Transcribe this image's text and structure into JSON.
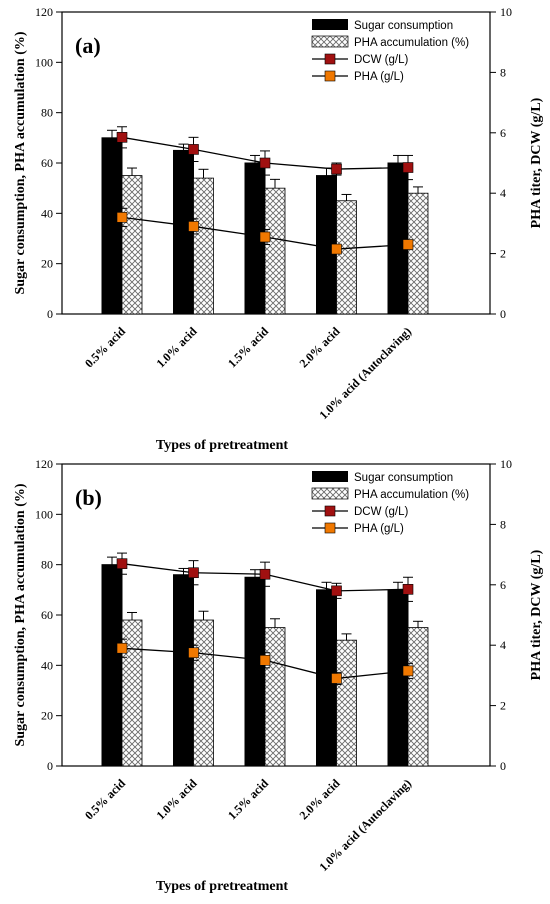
{
  "colors": {
    "sugar_bar": "#000000",
    "pha_accum_bar": "hatched-gray",
    "dcw_marker": "#a01010",
    "pha_marker": "#f07800",
    "line": "#000000"
  },
  "x_axis_title": "Types of pretreatment",
  "legend": {
    "sugar": "Sugar consumption",
    "accum": "PHA accumulation (%)",
    "dcw": "DCW (g/L)",
    "pha": "PHA (g/L)"
  },
  "chart_data": [
    {
      "type": "bar",
      "panel_label": "(a)",
      "categories": [
        "0.5% acid",
        "1.0% acid",
        "1.5% acid",
        "2.0% acid",
        "1.0% acid (Autoclaving)"
      ],
      "ylabel": "Sugar consumption, PHA accumulation (%)",
      "y2label": "PHA titer, DCW (g/L)",
      "xlabel": "Types of pretreatment",
      "ylim": [
        0,
        120
      ],
      "y2lim": [
        0,
        10
      ],
      "yticks": [
        "0",
        "20",
        "40",
        "60",
        "80",
        "100",
        "120"
      ],
      "y2ticks": [
        "0",
        "2",
        "4",
        "6",
        "8",
        "10"
      ],
      "series": [
        {
          "name": "Sugar consumption",
          "axis": "left",
          "kind": "bar",
          "values": [
            70,
            65,
            60,
            55,
            60
          ],
          "errors": [
            3,
            2.5,
            3,
            3,
            3
          ]
        },
        {
          "name": "PHA accumulation (%)",
          "axis": "left",
          "kind": "bar",
          "values": [
            55,
            54,
            50,
            45,
            48
          ],
          "errors": [
            3,
            3.5,
            3.5,
            2.5,
            2.5
          ]
        },
        {
          "name": "DCW (g/L)",
          "axis": "right",
          "kind": "line",
          "values": [
            5.85,
            5.45,
            5.0,
            4.8,
            4.85
          ],
          "errors": [
            0.35,
            0.4,
            0.4,
            0.2,
            0.4
          ]
        },
        {
          "name": "PHA (g/L)",
          "axis": "right",
          "kind": "line",
          "values": [
            3.2,
            2.9,
            2.55,
            2.15,
            2.3
          ],
          "errors": [
            0.3,
            0.25,
            0.25,
            0.15,
            0.15
          ]
        }
      ]
    },
    {
      "type": "bar",
      "panel_label": "(b)",
      "categories": [
        "0.5% acid",
        "1.0% acid",
        "1.5% acid",
        "2.0% acid",
        "1.0% acid (Autoclaving)"
      ],
      "ylabel": "Sugar consumption, PHA accumulation (%)",
      "y2label": "PHA titer, DCW (g/L)",
      "xlabel": "Types of pretreatment",
      "ylim": [
        0,
        120
      ],
      "y2lim": [
        0,
        10
      ],
      "yticks": [
        "0",
        "20",
        "40",
        "60",
        "80",
        "100",
        "120"
      ],
      "y2ticks": [
        "0",
        "2",
        "4",
        "6",
        "8",
        "10"
      ],
      "series": [
        {
          "name": "Sugar consumption",
          "axis": "left",
          "kind": "bar",
          "values": [
            80,
            76,
            75,
            70,
            70
          ],
          "errors": [
            3,
            2.5,
            3,
            3,
            3
          ]
        },
        {
          "name": "PHA accumulation (%)",
          "axis": "left",
          "kind": "bar",
          "values": [
            58,
            58,
            55,
            50,
            55
          ],
          "errors": [
            3,
            3.5,
            3.5,
            2.5,
            2.5
          ]
        },
        {
          "name": "DCW (g/L)",
          "axis": "right",
          "kind": "line",
          "values": [
            6.7,
            6.4,
            6.35,
            5.8,
            5.85
          ],
          "errors": [
            0.35,
            0.4,
            0.4,
            0.25,
            0.4
          ]
        },
        {
          "name": "PHA (g/L)",
          "axis": "right",
          "kind": "line",
          "values": [
            3.9,
            3.75,
            3.5,
            2.9,
            3.15
          ],
          "errors": [
            0.3,
            0.25,
            0.25,
            0.2,
            0.25
          ]
        }
      ]
    }
  ]
}
